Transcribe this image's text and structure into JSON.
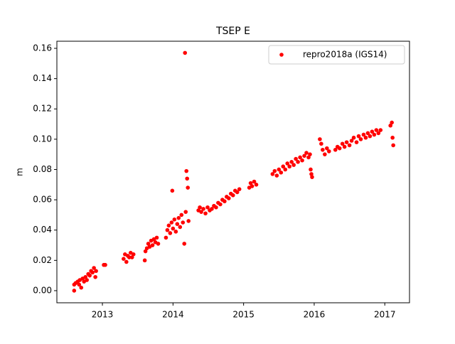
{
  "chart_data": {
    "type": "scatter",
    "title": "TSEP E",
    "y_label": "m",
    "x": [
      2012.6,
      2012.6,
      2012.62,
      2012.65,
      2012.67,
      2012.68,
      2012.7,
      2012.72,
      2012.74,
      2012.76,
      2012.78,
      2012.8,
      2012.82,
      2012.84,
      2012.86,
      2012.88,
      2012.9,
      2012.91,
      2013.02,
      2013.04,
      2013.3,
      2013.32,
      2013.34,
      2013.36,
      2013.38,
      2013.4,
      2013.42,
      2013.44,
      2013.6,
      2013.61,
      2013.63,
      2013.65,
      2013.67,
      2013.69,
      2013.71,
      2013.73,
      2013.75,
      2013.77,
      2013.79,
      2013.9,
      2013.92,
      2013.94,
      2013.96,
      2013.98,
      2013.99,
      2014.0,
      2014.02,
      2014.04,
      2014.06,
      2014.08,
      2014.1,
      2014.12,
      2014.14,
      2014.16,
      2014.17,
      2014.18,
      2014.19,
      2014.2,
      2014.21,
      2014.22,
      2014.36,
      2014.38,
      2014.4,
      2014.43,
      2014.46,
      2014.49,
      2014.52,
      2014.55,
      2014.58,
      2014.61,
      2014.64,
      2014.67,
      2014.7,
      2014.73,
      2014.76,
      2014.79,
      2014.82,
      2014.85,
      2014.88,
      2014.91,
      2014.94,
      2015.08,
      2015.1,
      2015.12,
      2015.15,
      2015.18,
      2015.41,
      2015.44,
      2015.47,
      2015.5,
      2015.53,
      2015.56,
      2015.59,
      2015.62,
      2015.65,
      2015.68,
      2015.71,
      2015.74,
      2015.77,
      2015.8,
      2015.83,
      2015.86,
      2015.89,
      2015.92,
      2015.94,
      2015.95,
      2015.96,
      2015.97,
      2016.08,
      2016.1,
      2016.12,
      2016.15,
      2016.18,
      2016.21,
      2016.3,
      2016.33,
      2016.36,
      2016.4,
      2016.43,
      2016.46,
      2016.5,
      2016.53,
      2016.56,
      2016.6,
      2016.63,
      2016.66,
      2016.7,
      2016.73,
      2016.76,
      2016.79,
      2016.82,
      2016.85,
      2016.88,
      2016.91,
      2016.94,
      2017.08,
      2017.1,
      2017.11,
      2017.12
    ],
    "series": [
      {
        "name": "repro2018a (IGS14)",
        "color": "#ff0000",
        "values": [
          0.0,
          0.004,
          0.005,
          0.006,
          0.004,
          0.007,
          0.002,
          0.008,
          0.006,
          0.009,
          0.007,
          0.011,
          0.01,
          0.013,
          0.012,
          0.015,
          0.009,
          0.013,
          0.017,
          0.017,
          0.021,
          0.024,
          0.019,
          0.023,
          0.022,
          0.025,
          0.022,
          0.024,
          0.02,
          0.026,
          0.028,
          0.031,
          0.029,
          0.033,
          0.03,
          0.034,
          0.032,
          0.035,
          0.031,
          0.035,
          0.04,
          0.043,
          0.038,
          0.045,
          0.066,
          0.041,
          0.047,
          0.039,
          0.044,
          0.048,
          0.042,
          0.05,
          0.045,
          0.031,
          0.157,
          0.052,
          0.079,
          0.074,
          0.068,
          0.046,
          0.053,
          0.055,
          0.052,
          0.054,
          0.051,
          0.055,
          0.053,
          0.054,
          0.056,
          0.055,
          0.058,
          0.057,
          0.06,
          0.059,
          0.062,
          0.061,
          0.064,
          0.063,
          0.066,
          0.065,
          0.067,
          0.068,
          0.071,
          0.069,
          0.072,
          0.07,
          0.077,
          0.079,
          0.076,
          0.08,
          0.078,
          0.082,
          0.08,
          0.084,
          0.082,
          0.085,
          0.083,
          0.087,
          0.085,
          0.088,
          0.086,
          0.089,
          0.091,
          0.088,
          0.09,
          0.08,
          0.077,
          0.075,
          0.1,
          0.097,
          0.093,
          0.09,
          0.094,
          0.092,
          0.093,
          0.095,
          0.094,
          0.097,
          0.095,
          0.098,
          0.096,
          0.099,
          0.101,
          0.098,
          0.102,
          0.1,
          0.103,
          0.101,
          0.104,
          0.102,
          0.105,
          0.103,
          0.106,
          0.104,
          0.106,
          0.109,
          0.111,
          0.101,
          0.096
        ]
      }
    ],
    "xlim": [
      2012.355,
      2017.35
    ],
    "xticks": [
      2013,
      2014,
      2015,
      2016,
      2017
    ],
    "ylim": [
      -0.008,
      0.1647
    ],
    "yticks": [
      {
        "value": 0,
        "label": "0.00"
      },
      {
        "value": 0.02,
        "label": "0.02"
      },
      {
        "value": 0.04,
        "label": "0.04"
      },
      {
        "value": 0.06,
        "label": "0.06"
      },
      {
        "value": 0.08,
        "label": "0.08"
      },
      {
        "value": 0.1,
        "label": "0.10"
      },
      {
        "value": 0.12,
        "label": "0.12"
      },
      {
        "value": 0.14,
        "label": "0.14"
      },
      {
        "value": 0.16,
        "label": "0.16"
      }
    ],
    "legend": "upper right",
    "grid": false
  }
}
